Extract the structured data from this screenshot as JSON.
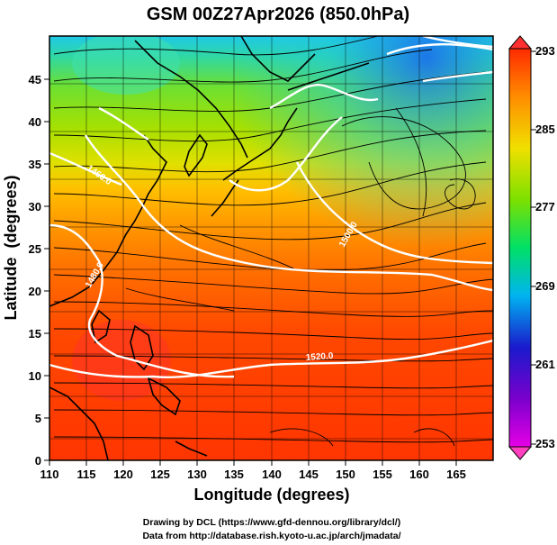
{
  "title": "GSM 00Z27Apr2026 (850.0hPa)",
  "xlabel": "Longitude (degrees)",
  "ylabel": "Latitude  (degrees)",
  "credits": [
    "Drawing by DCL (https://www.gfd-dennou.org/library/dcl/)",
    "Data from http://database.rish.kyoto-u.ac.jp/arch/jmadata/"
  ],
  "chart_data": {
    "type": "heatmap",
    "title": "GSM 00Z27Apr2026 (850.0hPa)",
    "xlabel": "Longitude (degrees)",
    "ylabel": "Latitude  (degrees)",
    "xlim": [
      110,
      170
    ],
    "ylim": [
      0,
      50
    ],
    "x_ticks": [
      110,
      115,
      120,
      125,
      130,
      135,
      140,
      145,
      150,
      155,
      160,
      165
    ],
    "y_ticks": [
      0,
      5,
      10,
      15,
      20,
      25,
      30,
      35,
      40,
      45
    ],
    "grid": true,
    "colorbar": {
      "ticks": [
        253,
        261,
        269,
        277,
        285,
        293
      ],
      "range": [
        253,
        293
      ],
      "colors": [
        "#e600e6",
        "#1a1acc",
        "#00b4f0",
        "#00e066",
        "#7ce000",
        "#f0e000",
        "#ff8c00",
        "#ff2a00"
      ]
    },
    "contour_labels": [
      {
        "text": "1520.0",
        "lon": 149,
        "lat": 11.5
      },
      {
        "text": "1460.0",
        "lon": 114,
        "lat": 35.5
      },
      {
        "text": "1480.0",
        "lon": 115.5,
        "lat": 22
      },
      {
        "text": "1500.0",
        "lon": 151,
        "lat": 29
      }
    ],
    "field_regions": [
      {
        "lat_range": [
          45,
          50
        ],
        "temperature_K": 272
      },
      {
        "lat_range": [
          38,
          45
        ],
        "temperature_K": 276
      },
      {
        "lat_range": [
          30,
          38
        ],
        "temperature_K": 281
      },
      {
        "lat_range": [
          20,
          30
        ],
        "temperature_K": 287
      },
      {
        "lat_range": [
          0,
          20
        ],
        "temperature_K": 291
      }
    ]
  }
}
